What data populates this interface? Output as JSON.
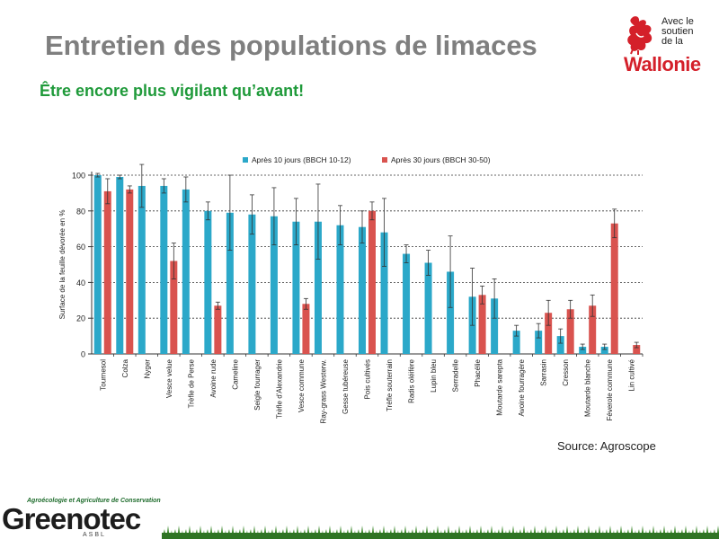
{
  "header": {
    "title": "Entretien des populations de limaces",
    "subtitle": "Être encore plus vigilant qu’avant!"
  },
  "brand": {
    "support_lines": [
      "Avec le",
      "soutien",
      "de la"
    ],
    "region": "Wallonie",
    "color": "#d4202a"
  },
  "chart_data": {
    "type": "bar",
    "ylabel": "Surface de la feuille dévorée en %",
    "xlabel": "",
    "ylim": [
      0,
      100
    ],
    "yticks": [
      0,
      20,
      40,
      60,
      80,
      100
    ],
    "grid": true,
    "legend_position": "top",
    "categories": [
      "Tournesol",
      "Colza",
      "Nyger",
      "Vesce velue",
      "Trèfle de Perse",
      "Avoine rude",
      "Cameline",
      "Seigle fourrager",
      "Trèfle d'Alexandrie",
      "Vesce commune",
      "Ray-grass Westerw.",
      "Gesse tubéreuse",
      "Pois cultivés",
      "Trèfle souterrain",
      "Radis oléifère",
      "Lupin bleu",
      "Serradelle",
      "Phacélie",
      "Moutarde sarepta",
      "Avoine fourragère",
      "Sarrasin",
      "Cresson",
      "Moutarde blanche",
      "Féverole commune",
      "Lin cultivé"
    ],
    "series": [
      {
        "name": "Après 10 jours (BBCH 10-12)",
        "color": "#2ba8c9",
        "values": [
          100,
          99,
          94,
          94,
          92,
          80,
          79,
          78,
          77,
          74,
          74,
          72,
          71,
          68,
          56,
          51,
          46,
          32,
          31,
          13,
          13,
          10,
          4,
          4,
          null
        ],
        "errors": [
          1,
          1,
          12,
          4,
          7,
          5,
          21,
          11,
          16,
          13,
          21,
          11,
          9,
          19,
          5,
          7,
          20,
          16,
          11,
          3,
          4,
          4,
          1.5,
          1.5,
          null
        ]
      },
      {
        "name": "Après 30 jours (BBCH 30-50)",
        "color": "#d9534f",
        "values": [
          91,
          92,
          null,
          52,
          null,
          27,
          null,
          null,
          null,
          28,
          null,
          null,
          80,
          null,
          null,
          null,
          null,
          33,
          null,
          null,
          23,
          25,
          27,
          73,
          5
        ],
        "errors": [
          7,
          2,
          null,
          10,
          null,
          2,
          null,
          null,
          null,
          3,
          null,
          null,
          5,
          null,
          null,
          null,
          null,
          5,
          null,
          null,
          7,
          5,
          6,
          8,
          1.5
        ]
      }
    ]
  },
  "source": "Source: Agroscope",
  "org": {
    "tagline": "Agroécologie et Agriculture de Conservation",
    "name": "Greenotec",
    "legal": "ASBL"
  }
}
